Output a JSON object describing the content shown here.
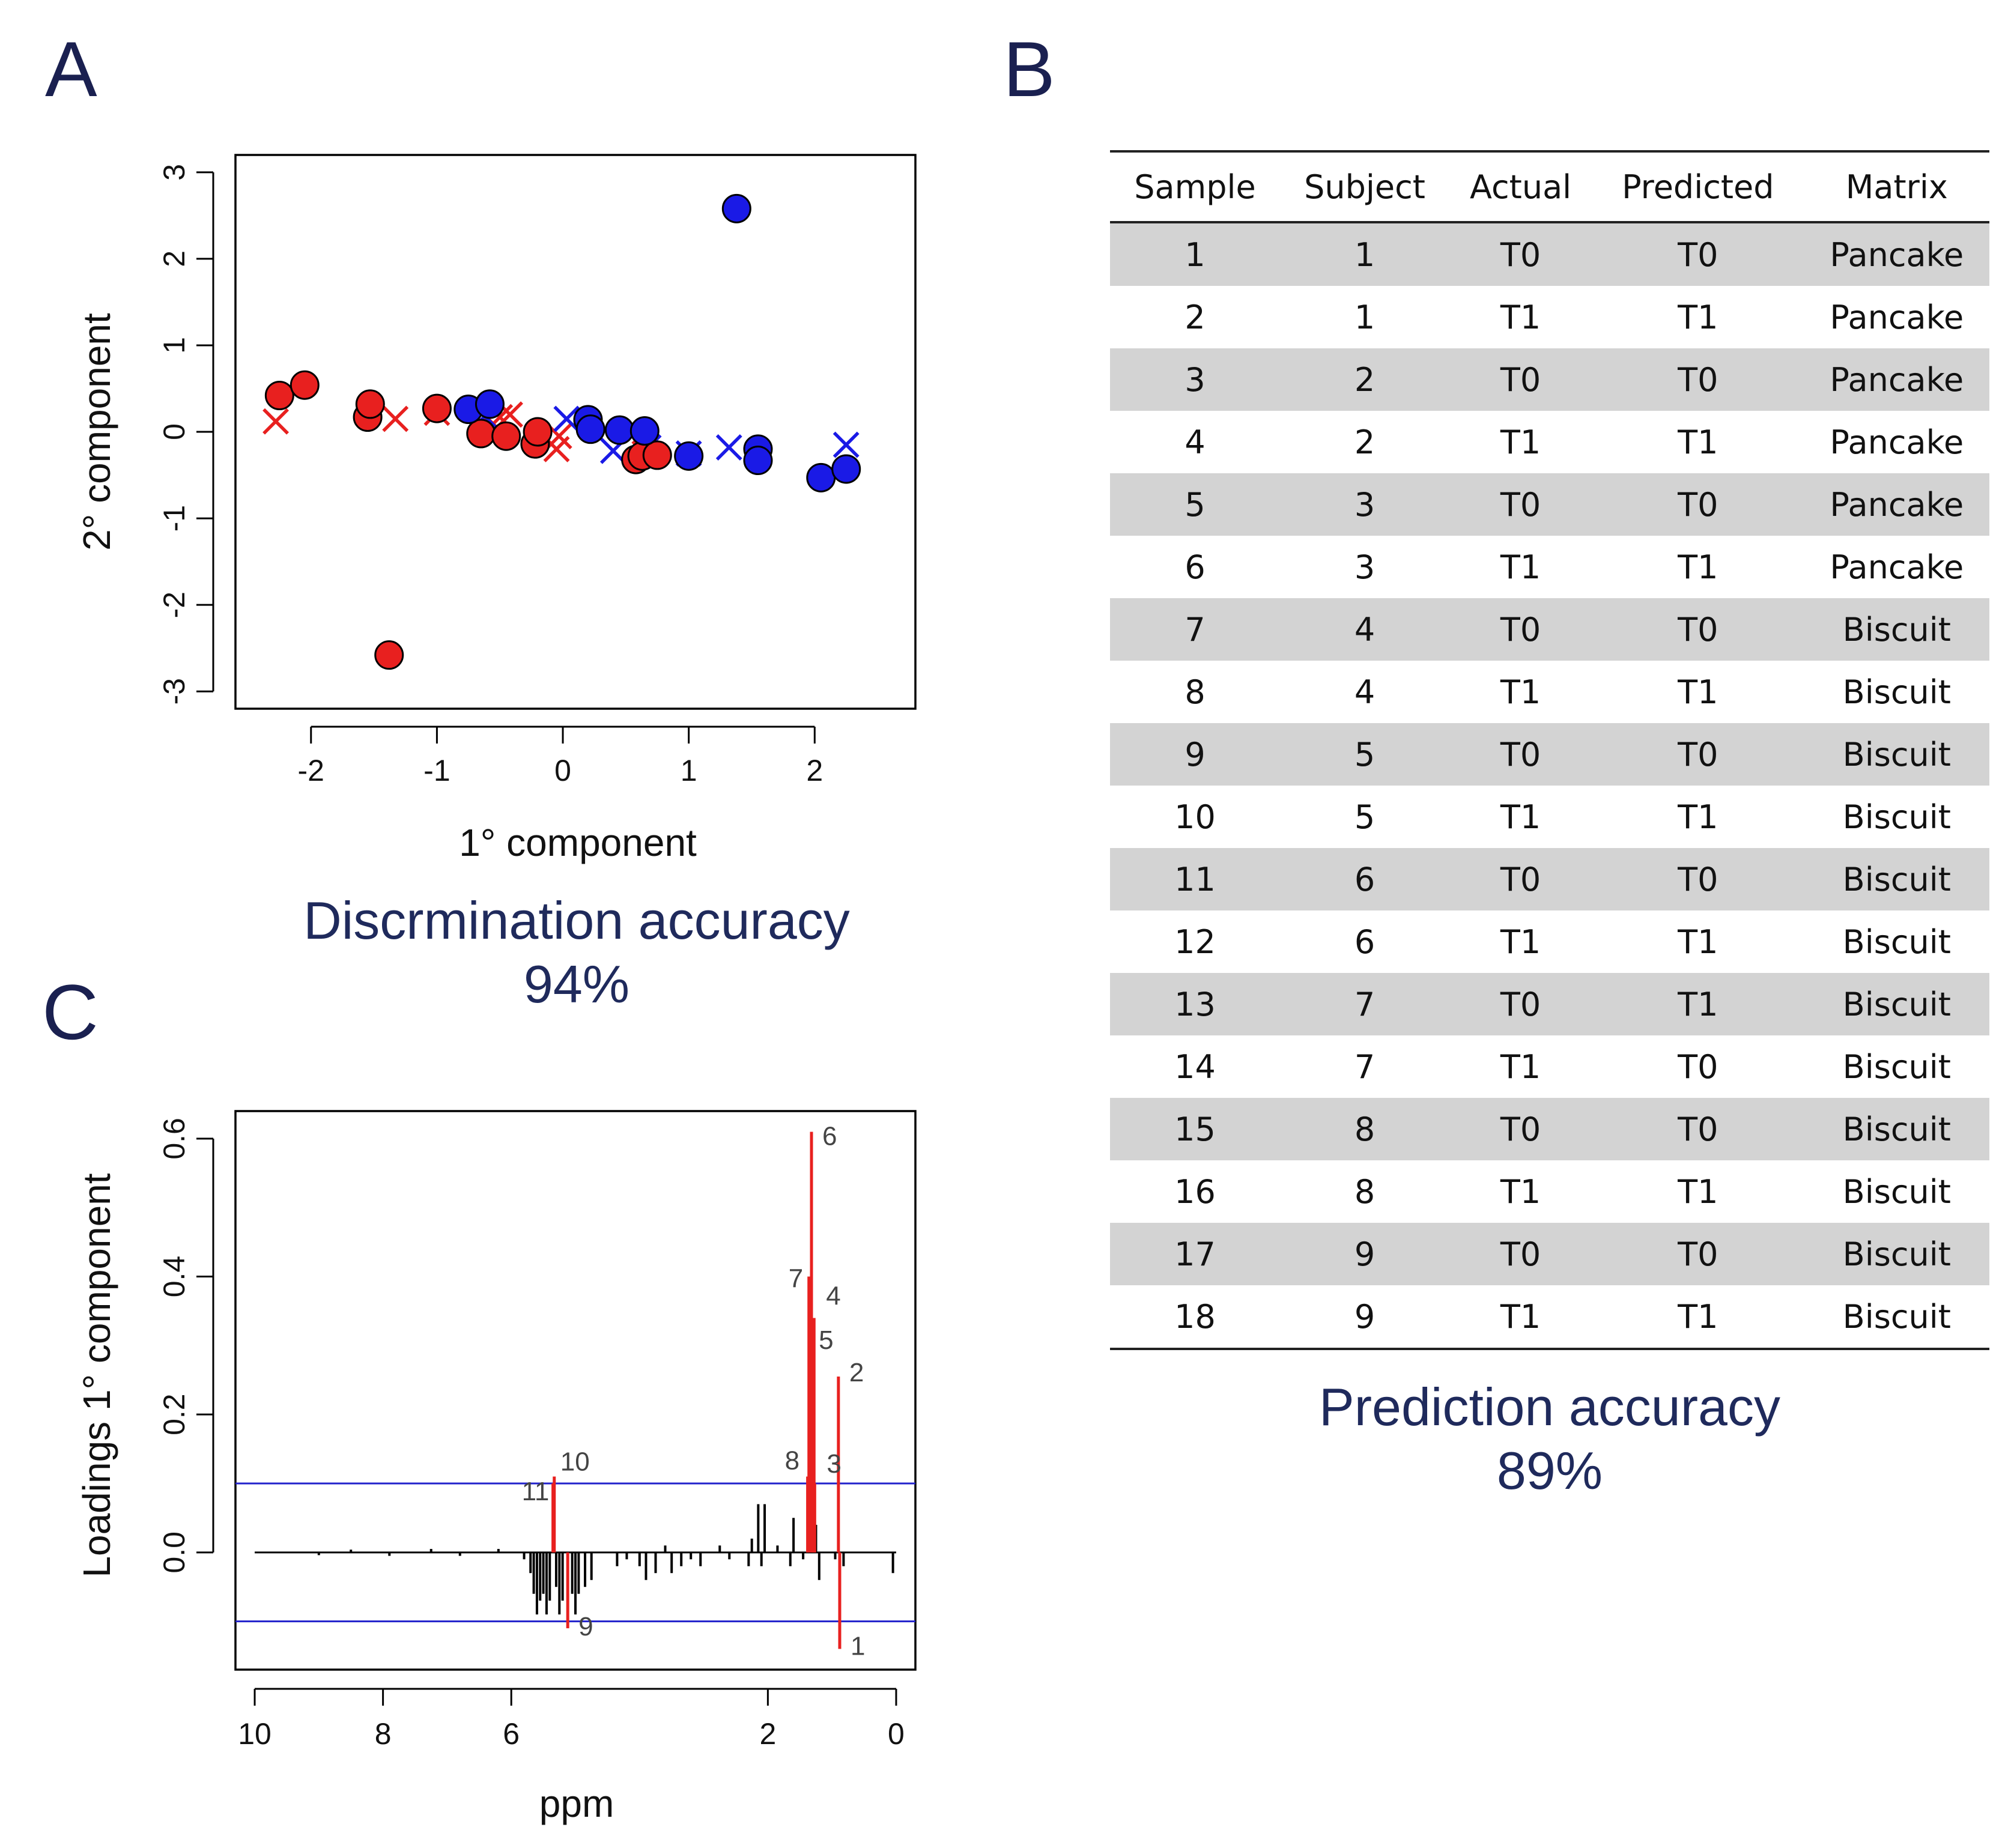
{
  "panels": {
    "a": "A",
    "b": "B",
    "c": "C"
  },
  "chart_data": [
    {
      "type": "scatter",
      "panel": "A",
      "xlabel": "1° component",
      "ylabel": "2° component",
      "xlim": [
        -2.6,
        2.8
      ],
      "ylim": [
        -3.2,
        3.2
      ],
      "xticks": [
        "-2",
        "-1",
        "0",
        "1",
        "2"
      ],
      "yticks": [
        "-3",
        "-2",
        "-1",
        "0",
        "1",
        "2",
        "3"
      ],
      "colors": {
        "red": "#e8201f",
        "blue": "#1a1ae6",
        "outline": "#000000"
      },
      "series": [
        {
          "name": "red circles",
          "marker": "circle",
          "color": "#e8201f",
          "points": [
            [
              -2.25,
              0.42
            ],
            [
              -2.05,
              0.54
            ],
            [
              -1.55,
              0.17
            ],
            [
              -1.53,
              0.32
            ],
            [
              -1.38,
              -2.58
            ],
            [
              -1.0,
              0.27
            ],
            [
              -0.65,
              -0.02
            ],
            [
              -0.45,
              -0.05
            ],
            [
              -0.22,
              -0.14
            ],
            [
              -0.2,
              0.0
            ],
            [
              0.58,
              -0.32
            ],
            [
              0.63,
              -0.28
            ],
            [
              0.75,
              -0.27
            ]
          ]
        },
        {
          "name": "red crosses",
          "marker": "x",
          "color": "#e8201f",
          "points": [
            [
              -2.28,
              0.12
            ],
            [
              -1.33,
              0.15
            ],
            [
              -1.0,
              0.22
            ],
            [
              -0.6,
              0.16
            ],
            [
              -0.5,
              0.17
            ],
            [
              -0.42,
              0.2
            ],
            [
              -0.05,
              -0.2
            ],
            [
              -0.03,
              -0.05
            ],
            [
              0.65,
              -0.25
            ]
          ]
        },
        {
          "name": "blue circles",
          "marker": "circle",
          "color": "#1a1ae6",
          "points": [
            [
              -0.75,
              0.26
            ],
            [
              -0.58,
              0.32
            ],
            [
              0.2,
              0.14
            ],
            [
              0.22,
              0.03
            ],
            [
              0.45,
              0.02
            ],
            [
              0.65,
              0.01
            ],
            [
              1.0,
              -0.28
            ],
            [
              1.38,
              2.58
            ],
            [
              1.55,
              -0.2
            ],
            [
              1.55,
              -0.33
            ],
            [
              2.05,
              -0.53
            ],
            [
              2.25,
              -0.43
            ]
          ]
        },
        {
          "name": "blue crosses",
          "marker": "x",
          "color": "#1a1ae6",
          "points": [
            [
              -0.62,
              0.18
            ],
            [
              0.03,
              0.15
            ],
            [
              0.4,
              -0.22
            ],
            [
              0.68,
              -0.18
            ],
            [
              1.0,
              -0.25
            ],
            [
              1.32,
              -0.18
            ],
            [
              2.25,
              -0.15
            ]
          ]
        }
      ],
      "caption": {
        "line1": "Discrmination accuracy",
        "line2": "94%"
      }
    },
    {
      "type": "line",
      "panel": "C",
      "xlabel": "ppm",
      "ylabel": "Loadings 1° component",
      "xlim": [
        10.3,
        -0.3
      ],
      "ylim": [
        -0.17,
        0.64
      ],
      "xticks": [
        "10",
        "8",
        "6",
        "2",
        "0"
      ],
      "yticks": [
        "0.0",
        "0.2",
        "0.4",
        "0.6"
      ],
      "thresholds": [
        0.1,
        -0.1
      ],
      "colors": {
        "trace": "#000000",
        "highlight": "#e8201f",
        "threshold": "#2222cc"
      },
      "highlighted_peaks": [
        {
          "label": "1",
          "ppm": 0.88,
          "value": -0.14
        },
        {
          "label": "2",
          "ppm": 0.9,
          "value": 0.255
        },
        {
          "label": "3",
          "ppm": 1.27,
          "value": 0.1
        },
        {
          "label": "4",
          "ppm": 1.28,
          "value": 0.34
        },
        {
          "label": "5",
          "ppm": 1.3,
          "value": 0.29
        },
        {
          "label": "6",
          "ppm": 1.32,
          "value": 0.61
        },
        {
          "label": "7",
          "ppm": 1.36,
          "value": 0.4
        },
        {
          "label": "8",
          "ppm": 1.38,
          "value": 0.11
        },
        {
          "label": "9",
          "ppm": 5.12,
          "value": -0.11
        },
        {
          "label": "10",
          "ppm": 5.33,
          "value": 0.11
        },
        {
          "label": "11",
          "ppm": 5.35,
          "value": 0.1
        }
      ],
      "black_peaks": [
        [
          0.05,
          -0.03
        ],
        [
          0.82,
          -0.02
        ],
        [
          0.95,
          -0.01
        ],
        [
          1.2,
          -0.04
        ],
        [
          1.25,
          0.04
        ],
        [
          1.45,
          -0.01
        ],
        [
          1.6,
          0.05
        ],
        [
          1.65,
          -0.02
        ],
        [
          1.85,
          0.01
        ],
        [
          2.05,
          0.07
        ],
        [
          2.1,
          -0.02
        ],
        [
          2.15,
          0.07
        ],
        [
          2.25,
          0.02
        ],
        [
          2.3,
          -0.02
        ],
        [
          2.6,
          -0.01
        ],
        [
          2.75,
          0.01
        ],
        [
          3.05,
          -0.02
        ],
        [
          3.2,
          -0.01
        ],
        [
          3.35,
          -0.02
        ],
        [
          3.5,
          -0.03
        ],
        [
          3.6,
          0.01
        ],
        [
          3.75,
          -0.03
        ],
        [
          3.9,
          -0.04
        ],
        [
          4.0,
          -0.02
        ],
        [
          4.2,
          -0.01
        ],
        [
          4.35,
          -0.02
        ],
        [
          4.75,
          -0.04
        ],
        [
          4.85,
          -0.05
        ],
        [
          4.95,
          -0.06
        ],
        [
          5.0,
          -0.09
        ],
        [
          5.05,
          -0.06
        ],
        [
          5.2,
          -0.07
        ],
        [
          5.25,
          -0.09
        ],
        [
          5.3,
          -0.05
        ],
        [
          5.4,
          -0.07
        ],
        [
          5.45,
          -0.09
        ],
        [
          5.5,
          -0.06
        ],
        [
          5.55,
          -0.07
        ],
        [
          5.6,
          -0.09
        ],
        [
          5.65,
          -0.06
        ],
        [
          5.7,
          -0.03
        ],
        [
          5.8,
          -0.01
        ],
        [
          6.2,
          0.005
        ],
        [
          6.8,
          -0.005
        ],
        [
          7.25,
          0.005
        ],
        [
          7.9,
          -0.005
        ],
        [
          8.5,
          0.004
        ],
        [
          9.0,
          -0.004
        ]
      ]
    },
    {
      "type": "table",
      "panel": "B",
      "columns": [
        "Sample",
        "Subject",
        "Actual",
        "Predicted",
        "Matrix"
      ],
      "rows": [
        [
          "1",
          "1",
          "T0",
          "T0",
          "Pancake"
        ],
        [
          "2",
          "1",
          "T1",
          "T1",
          "Pancake"
        ],
        [
          "3",
          "2",
          "T0",
          "T0",
          "Pancake"
        ],
        [
          "4",
          "2",
          "T1",
          "T1",
          "Pancake"
        ],
        [
          "5",
          "3",
          "T0",
          "T0",
          "Pancake"
        ],
        [
          "6",
          "3",
          "T1",
          "T1",
          "Pancake"
        ],
        [
          "7",
          "4",
          "T0",
          "T0",
          "Biscuit"
        ],
        [
          "8",
          "4",
          "T1",
          "T1",
          "Biscuit"
        ],
        [
          "9",
          "5",
          "T0",
          "T0",
          "Biscuit"
        ],
        [
          "10",
          "5",
          "T1",
          "T1",
          "Biscuit"
        ],
        [
          "11",
          "6",
          "T0",
          "T0",
          "Biscuit"
        ],
        [
          "12",
          "6",
          "T1",
          "T1",
          "Biscuit"
        ],
        [
          "13",
          "7",
          "T0",
          "T1",
          "Biscuit"
        ],
        [
          "14",
          "7",
          "T1",
          "T0",
          "Biscuit"
        ],
        [
          "15",
          "8",
          "T0",
          "T0",
          "Biscuit"
        ],
        [
          "16",
          "8",
          "T1",
          "T1",
          "Biscuit"
        ],
        [
          "17",
          "9",
          "T0",
          "T0",
          "Biscuit"
        ],
        [
          "18",
          "9",
          "T1",
          "T1",
          "Biscuit"
        ]
      ],
      "row_shade": "#d3d3d3",
      "caption": {
        "line1": "Prediction accuracy",
        "line2": "89%"
      }
    }
  ]
}
